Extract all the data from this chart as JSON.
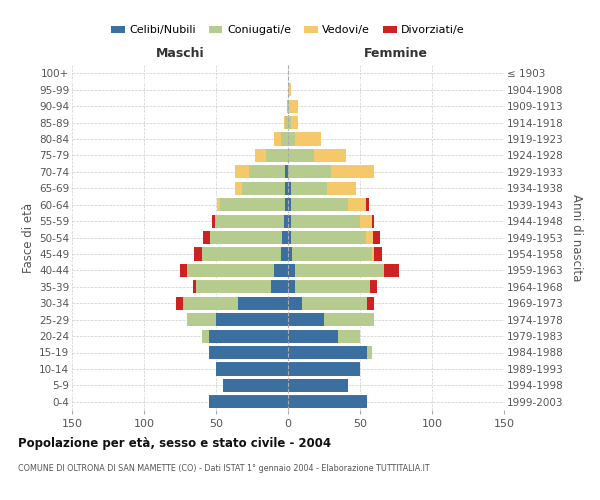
{
  "age_groups": [
    "0-4",
    "5-9",
    "10-14",
    "15-19",
    "20-24",
    "25-29",
    "30-34",
    "35-39",
    "40-44",
    "45-49",
    "50-54",
    "55-59",
    "60-64",
    "65-69",
    "70-74",
    "75-79",
    "80-84",
    "85-89",
    "90-94",
    "95-99",
    "100+"
  ],
  "birth_years": [
    "1999-2003",
    "1994-1998",
    "1989-1993",
    "1984-1988",
    "1979-1983",
    "1974-1978",
    "1969-1973",
    "1964-1968",
    "1959-1963",
    "1954-1958",
    "1949-1953",
    "1944-1948",
    "1939-1943",
    "1934-1938",
    "1929-1933",
    "1924-1928",
    "1919-1923",
    "1914-1918",
    "1909-1913",
    "1904-1908",
    "≤ 1903"
  ],
  "colors": {
    "celibi": "#3b6fa0",
    "coniugati": "#b5cc8e",
    "vedovi": "#f5c96a",
    "divorziati": "#cc2222"
  },
  "males": {
    "celibi": [
      55,
      45,
      50,
      55,
      55,
      50,
      35,
      12,
      10,
      5,
      4,
      3,
      2,
      2,
      2,
      0,
      0,
      0,
      0,
      0,
      0
    ],
    "coniugati": [
      0,
      0,
      0,
      0,
      5,
      20,
      38,
      52,
      60,
      55,
      50,
      48,
      45,
      30,
      25,
      15,
      5,
      2,
      1,
      0,
      0
    ],
    "vedovi": [
      0,
      0,
      0,
      0,
      0,
      0,
      0,
      0,
      0,
      0,
      0,
      0,
      2,
      5,
      10,
      8,
      5,
      1,
      0,
      0,
      0
    ],
    "divorziati": [
      0,
      0,
      0,
      0,
      0,
      0,
      5,
      2,
      5,
      5,
      5,
      2,
      0,
      0,
      0,
      0,
      0,
      0,
      0,
      0,
      0
    ]
  },
  "females": {
    "nubili": [
      55,
      42,
      50,
      55,
      35,
      25,
      10,
      5,
      5,
      3,
      2,
      2,
      2,
      2,
      0,
      0,
      0,
      0,
      0,
      0,
      0
    ],
    "coniugate": [
      0,
      0,
      0,
      3,
      15,
      35,
      45,
      52,
      62,
      55,
      52,
      48,
      40,
      25,
      30,
      18,
      5,
      2,
      1,
      0,
      0
    ],
    "vedove": [
      0,
      0,
      0,
      0,
      0,
      0,
      0,
      0,
      0,
      2,
      5,
      8,
      12,
      20,
      30,
      22,
      18,
      5,
      6,
      2,
      0
    ],
    "divorziate": [
      0,
      0,
      0,
      0,
      0,
      0,
      5,
      5,
      10,
      5,
      5,
      2,
      2,
      0,
      0,
      0,
      0,
      0,
      0,
      0,
      0
    ]
  },
  "title": "Popolazione per età, sesso e stato civile - 2004",
  "subtitle": "COMUNE DI OLTRONA DI SAN MAMETTE (CO) - Dati ISTAT 1° gennaio 2004 - Elaborazione TUTTITALIA.IT",
  "ylabel_left": "Fasce di età",
  "ylabel_right": "Anni di nascita",
  "xlabel_left": "Maschi",
  "xlabel_right": "Femmine",
  "xlim": 150,
  "legend_labels": [
    "Celibi/Nubili",
    "Coniugati/e",
    "Vedovi/e",
    "Divorziati/e"
  ],
  "background_color": "#ffffff",
  "grid_color": "#cccccc"
}
